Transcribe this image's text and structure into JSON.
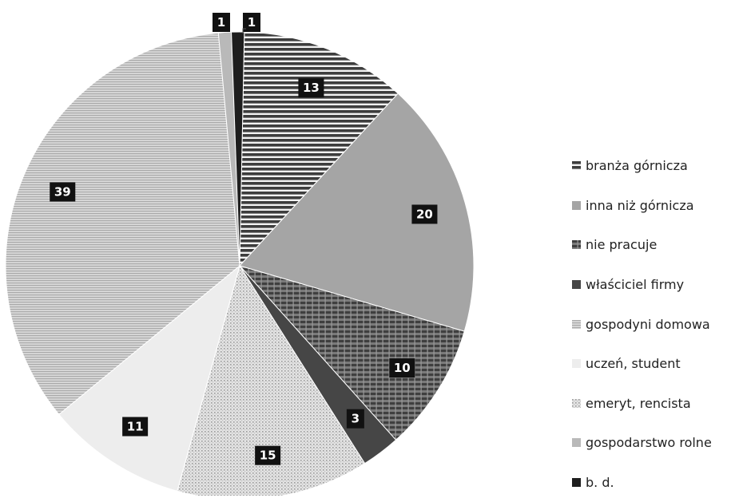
{
  "chart_data": {
    "type": "pie",
    "title": "",
    "legend_position": "right",
    "slices": [
      {
        "name": "branża górnicza",
        "value": 13,
        "label": "13",
        "color": "#4a4a4a",
        "pattern": "horizontal-stripes"
      },
      {
        "name": "inna niż górnicza",
        "value": 20,
        "label": "20",
        "color": "#a5a5a5",
        "pattern": "solid"
      },
      {
        "name": "nie pracuje",
        "value": 10,
        "label": "10",
        "color": "#5a5a5a",
        "pattern": "grid"
      },
      {
        "name": "właściciel firmy",
        "value": 3,
        "label": "3",
        "color": "#464646",
        "pattern": "solid"
      },
      {
        "name": "emeryt, rencista",
        "value": 15,
        "label": "15",
        "color": "#d2d2d2",
        "pattern": "vertical-dots"
      },
      {
        "name": "uczeń, student",
        "value": 11,
        "label": "11",
        "color": "#ededed",
        "pattern": "solid"
      },
      {
        "name": "gospodyni domowa",
        "value": 39,
        "label": "39",
        "color": "#c4c4c4",
        "pattern": "fine-horizontal"
      },
      {
        "name": "gospodarstwo rolne",
        "value": 1,
        "label": "1",
        "color": "#b9b9b9",
        "pattern": "solid"
      },
      {
        "name": "b. d.",
        "value": 1,
        "label": "1",
        "color": "#1e1e1e",
        "pattern": "solid"
      }
    ]
  },
  "legend": {
    "items": [
      {
        "label": "branża górnicza",
        "color": "#4a4a4a",
        "pattern": "horizontal-stripes"
      },
      {
        "label": "inna niż górnicza",
        "color": "#a5a5a5",
        "pattern": "solid"
      },
      {
        "label": "nie pracuje",
        "color": "#5a5a5a",
        "pattern": "grid"
      },
      {
        "label": "właściciel firmy",
        "color": "#464646",
        "pattern": "solid"
      },
      {
        "label": "gospodyni domowa",
        "color": "#c4c4c4",
        "pattern": "fine-horizontal"
      },
      {
        "label": "uczeń, student",
        "color": "#ededed",
        "pattern": "solid"
      },
      {
        "label": "emeryt, rencista",
        "color": "#d2d2d2",
        "pattern": "vertical-dots"
      },
      {
        "label": "gospodarstwo rolne",
        "color": "#b9b9b9",
        "pattern": "solid"
      },
      {
        "label": "b. d.",
        "color": "#1e1e1e",
        "pattern": "solid"
      }
    ]
  }
}
